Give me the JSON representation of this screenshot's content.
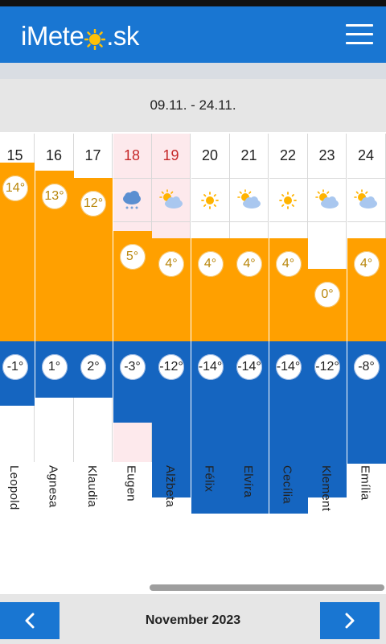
{
  "header": {
    "logo_left": "iMete",
    "logo_right": ".sk",
    "menu_icon": "hamburger-icon"
  },
  "range": {
    "label": "09.11. - 24.11."
  },
  "colors": {
    "accent": "#1976d2",
    "high": "#ffa000",
    "low": "#1565c0",
    "weekend_text": "#c62828"
  },
  "days": [
    {
      "day": "15",
      "weekend": false,
      "icon": "rain-cloud-icon",
      "high": "14°",
      "low": "-1°",
      "name": "Leopold"
    },
    {
      "day": "16",
      "weekend": false,
      "icon": "rain-cloud-icon",
      "high": "13°",
      "low": "1°",
      "name": "Agnesa"
    },
    {
      "day": "17",
      "weekend": false,
      "icon": "rain-cloud-icon",
      "high": "12°",
      "low": "2°",
      "name": "Klaudia"
    },
    {
      "day": "18",
      "weekend": true,
      "icon": "snow-cloud-icon",
      "high": "5°",
      "low": "-3°",
      "name": "Eugen"
    },
    {
      "day": "19",
      "weekend": true,
      "icon": "partly-cloudy-icon",
      "high": "4°",
      "low": "-12°",
      "name": "Alžbeta"
    },
    {
      "day": "20",
      "weekend": false,
      "icon": "sun-icon",
      "high": "4°",
      "low": "-14°",
      "name": "Félix"
    },
    {
      "day": "21",
      "weekend": false,
      "icon": "partly-cloudy-icon",
      "high": "4°",
      "low": "-14°",
      "name": "Elvíra"
    },
    {
      "day": "22",
      "weekend": false,
      "icon": "sun-icon",
      "high": "4°",
      "low": "-14°",
      "name": "Cecília"
    },
    {
      "day": "23",
      "weekend": false,
      "icon": "partly-cloudy-icon",
      "high": "0°",
      "low": "-12°",
      "name": "Klement"
    },
    {
      "day": "24",
      "weekend": false,
      "icon": "partly-cloudy-icon",
      "high": "4°",
      "low": "-8°",
      "name": "Emília"
    }
  ],
  "footer": {
    "month": "November 2023",
    "prev_icon": "chevron-left-icon",
    "next_icon": "chevron-right-icon"
  }
}
